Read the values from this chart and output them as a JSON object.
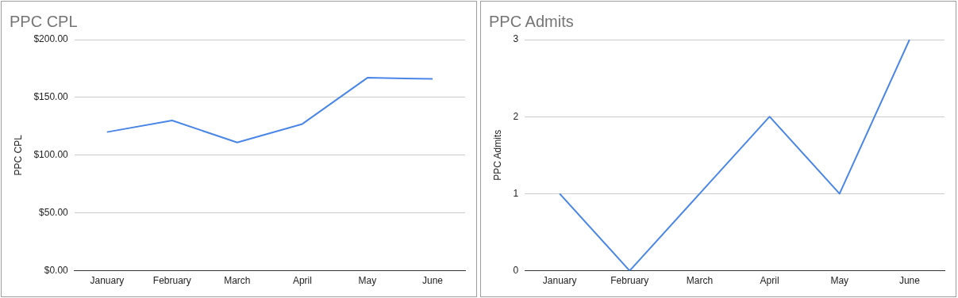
{
  "chart_data": [
    {
      "type": "line",
      "title": "PPC CPL",
      "ylabel": "PPC CPL",
      "categories": [
        "January",
        "February",
        "March",
        "April",
        "May",
        "June"
      ],
      "series": [
        {
          "color": "#4a86e8",
          "values": [
            120,
            130,
            111,
            127,
            167,
            166
          ]
        }
      ],
      "ylim": [
        0,
        200
      ],
      "yticks": [
        {
          "value": 0,
          "label": "$0.00"
        },
        {
          "value": 50,
          "label": "$50.00"
        },
        {
          "value": 100,
          "label": "$100.00"
        },
        {
          "value": 150,
          "label": "$150.00"
        },
        {
          "value": 200,
          "label": "$200.00"
        }
      ],
      "grid": "y",
      "legend": false,
      "marker": "none",
      "line_style": "solid"
    },
    {
      "type": "line",
      "title": "PPC Admits",
      "ylabel": "PPC Admits",
      "categories": [
        "January",
        "February",
        "March",
        "April",
        "May",
        "June"
      ],
      "series": [
        {
          "color": "#4a86e8",
          "values": [
            1,
            0,
            1,
            2,
            1,
            3
          ]
        }
      ],
      "ylim": [
        0,
        3
      ],
      "yticks": [
        0,
        1,
        2,
        3
      ],
      "grid": "y",
      "legend": false,
      "marker": "none",
      "line_style": "solid"
    }
  ]
}
